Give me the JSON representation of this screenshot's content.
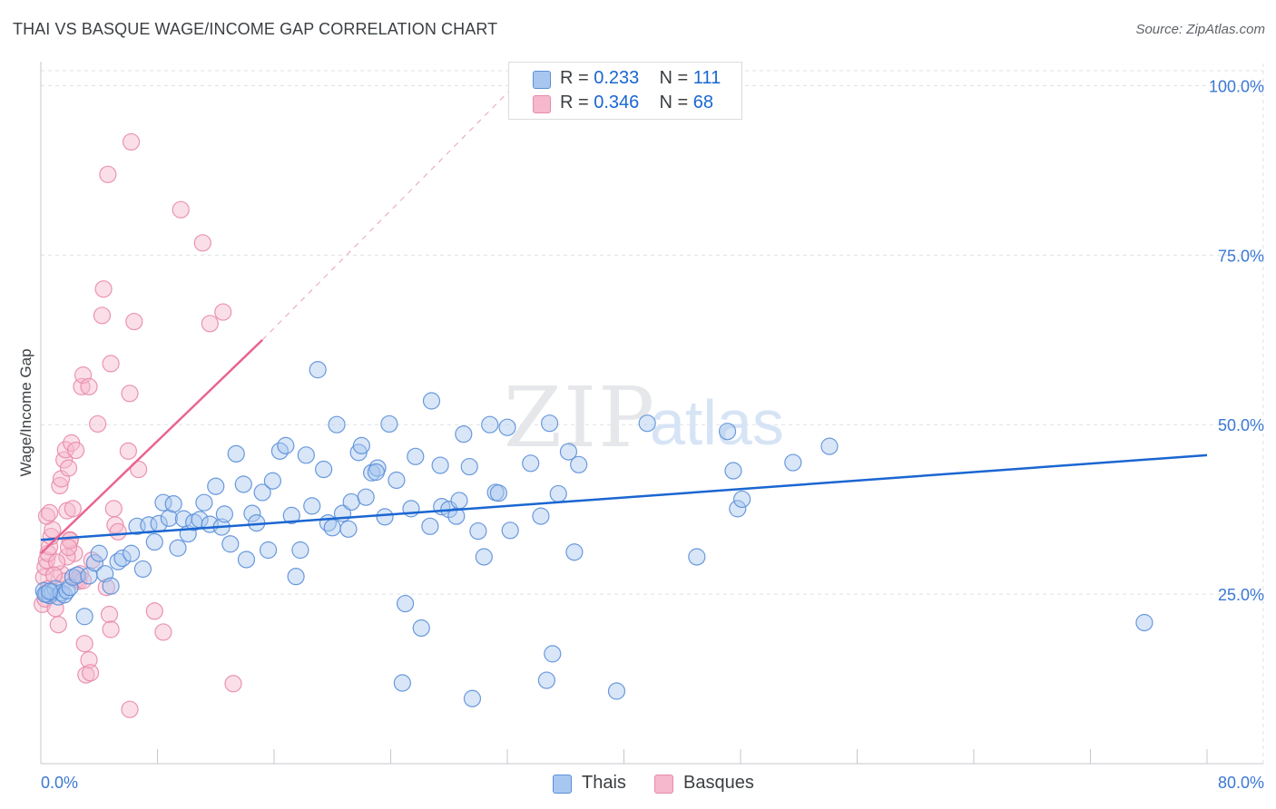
{
  "header": {
    "title": "THAI VS BASQUE WAGE/INCOME GAP CORRELATION CHART",
    "source": "Source: ZipAtlas.com"
  },
  "watermark": {
    "zip": "ZIP",
    "atlas": "atlas"
  },
  "colors": {
    "thais_fill": "#a8c7f0",
    "thais_stroke": "#5b8fd8",
    "thais_line": "#1a66d2",
    "basques_fill": "#f6b8cc",
    "basques_stroke": "#e88aa8",
    "basques_line": "#e8648e",
    "tick_label": "#3a78d4",
    "grid": "#dfe1e5"
  },
  "legend": {
    "thais": {
      "r_label": "R =",
      "r_value": "0.233",
      "n_label": "N =",
      "n_value": "111"
    },
    "basques": {
      "r_label": "R =",
      "r_value": "0.346",
      "n_label": "N =",
      "n_value": "68"
    }
  },
  "bottom_legend": {
    "thais": "Thais",
    "basques": "Basques"
  },
  "chart_data": {
    "type": "scatter",
    "title": "THAI VS BASQUE WAGE/INCOME GAP CORRELATION CHART",
    "xlabel": "",
    "ylabel": "Wage/Income Gap",
    "xlim": [
      0,
      80
    ],
    "ylim": [
      0,
      105
    ],
    "x_tick_labels": {
      "min": "0.0%",
      "max": "80.0%"
    },
    "y_ticks": [
      {
        "value": 25,
        "label": "25.0%"
      },
      {
        "value": 50,
        "label": "50.0%"
      },
      {
        "value": 75,
        "label": "75.0%"
      },
      {
        "value": 100,
        "label": "100.0%"
      }
    ],
    "grid": true,
    "series": [
      {
        "name": "Thais",
        "r": 0.233,
        "n": 111,
        "trend": {
          "x0": 0,
          "y0": 33.0,
          "x1": 80,
          "y1": 45.5,
          "style": "solid"
        },
        "points": [
          [
            0.2,
            25.5
          ],
          [
            0.4,
            25.0
          ],
          [
            0.6,
            24.8
          ],
          [
            0.8,
            25.3
          ],
          [
            1.0,
            25.8
          ],
          [
            1.2,
            24.6
          ],
          [
            1.4,
            25.2
          ],
          [
            1.6,
            24.9
          ],
          [
            1.8,
            25.5
          ],
          [
            2.0,
            26.0
          ],
          [
            2.2,
            27.5
          ],
          [
            2.5,
            27.8
          ],
          [
            3.0,
            21.7
          ],
          [
            3.3,
            27.7
          ],
          [
            3.7,
            29.6
          ],
          [
            4.0,
            31.0
          ],
          [
            4.4,
            28.0
          ],
          [
            4.8,
            26.2
          ],
          [
            5.3,
            29.8
          ],
          [
            5.6,
            30.3
          ],
          [
            6.2,
            31.0
          ],
          [
            6.6,
            35.0
          ],
          [
            7.0,
            28.7
          ],
          [
            7.4,
            35.2
          ],
          [
            7.8,
            32.7
          ],
          [
            8.1,
            35.4
          ],
          [
            8.4,
            38.5
          ],
          [
            8.8,
            36.2
          ],
          [
            9.1,
            38.3
          ],
          [
            9.4,
            31.8
          ],
          [
            9.8,
            36.1
          ],
          [
            10.1,
            33.9
          ],
          [
            10.5,
            35.6
          ],
          [
            10.9,
            36.0
          ],
          [
            11.2,
            38.5
          ],
          [
            11.6,
            35.3
          ],
          [
            12.0,
            40.9
          ],
          [
            12.4,
            34.9
          ],
          [
            12.6,
            36.8
          ],
          [
            13.0,
            32.4
          ],
          [
            13.4,
            45.7
          ],
          [
            13.9,
            41.2
          ],
          [
            14.1,
            30.1
          ],
          [
            14.5,
            36.9
          ],
          [
            14.8,
            35.5
          ],
          [
            15.2,
            40.0
          ],
          [
            15.6,
            31.5
          ],
          [
            15.9,
            41.7
          ],
          [
            16.4,
            46.1
          ],
          [
            16.8,
            46.9
          ],
          [
            17.2,
            36.6
          ],
          [
            17.5,
            27.6
          ],
          [
            17.8,
            31.5
          ],
          [
            18.2,
            45.5
          ],
          [
            18.6,
            38.0
          ],
          [
            19.0,
            58.1
          ],
          [
            19.4,
            43.4
          ],
          [
            19.7,
            35.5
          ],
          [
            20.0,
            34.8
          ],
          [
            20.3,
            50.0
          ],
          [
            20.7,
            36.9
          ],
          [
            21.1,
            34.6
          ],
          [
            21.3,
            38.6
          ],
          [
            21.8,
            45.9
          ],
          [
            22.0,
            46.9
          ],
          [
            22.3,
            39.3
          ],
          [
            22.7,
            42.9
          ],
          [
            23.1,
            43.6
          ],
          [
            23.0,
            43.0
          ],
          [
            23.6,
            36.4
          ],
          [
            23.9,
            50.1
          ],
          [
            24.4,
            41.8
          ],
          [
            25.0,
            23.6
          ],
          [
            24.8,
            11.9
          ],
          [
            25.4,
            37.6
          ],
          [
            25.7,
            45.3
          ],
          [
            26.1,
            20.0
          ],
          [
            26.8,
            53.5
          ],
          [
            26.7,
            35.0
          ],
          [
            27.5,
            37.9
          ],
          [
            27.4,
            44.0
          ],
          [
            28.0,
            37.5
          ],
          [
            28.5,
            36.5
          ],
          [
            28.7,
            38.8
          ],
          [
            29.0,
            48.6
          ],
          [
            29.4,
            43.8
          ],
          [
            29.6,
            9.6
          ],
          [
            30.0,
            34.3
          ],
          [
            30.4,
            30.5
          ],
          [
            30.8,
            50.0
          ],
          [
            31.2,
            40.0
          ],
          [
            31.4,
            39.9
          ],
          [
            32.0,
            49.6
          ],
          [
            32.2,
            34.4
          ],
          [
            33.6,
            44.3
          ],
          [
            34.3,
            36.5
          ],
          [
            34.7,
            12.3
          ],
          [
            34.9,
            50.2
          ],
          [
            35.1,
            16.2
          ],
          [
            35.5,
            39.8
          ],
          [
            36.2,
            46.0
          ],
          [
            36.6,
            31.2
          ],
          [
            36.9,
            44.1
          ],
          [
            39.5,
            10.7
          ],
          [
            41.6,
            50.2
          ],
          [
            45.0,
            30.5
          ],
          [
            47.1,
            49.0
          ],
          [
            47.5,
            43.2
          ],
          [
            47.8,
            37.6
          ],
          [
            48.1,
            39.0
          ],
          [
            51.6,
            44.4
          ],
          [
            54.1,
            46.8
          ],
          [
            75.7,
            20.8
          ],
          [
            0.3,
            25.0
          ],
          [
            0.6,
            25.4
          ]
        ]
      },
      {
        "name": "Basques",
        "r": 0.346,
        "n": 68,
        "trend": {
          "x0": 0,
          "y0": 31.0,
          "x1": 15.2,
          "y1": 62.5,
          "dash_to": {
            "x": 32.5,
            "y": 100.0
          },
          "style": "solid-then-dashed"
        },
        "points": [
          [
            0.1,
            23.5
          ],
          [
            0.2,
            27.5
          ],
          [
            0.3,
            29.0
          ],
          [
            0.4,
            30.0
          ],
          [
            0.5,
            31.0
          ],
          [
            0.6,
            32.0
          ],
          [
            0.7,
            33.5
          ],
          [
            0.8,
            34.5
          ],
          [
            0.4,
            36.5
          ],
          [
            0.6,
            37.0
          ],
          [
            0.3,
            24.3
          ],
          [
            0.5,
            25.8
          ],
          [
            1.2,
            20.5
          ],
          [
            1.0,
            22.9
          ],
          [
            1.4,
            28.0
          ],
          [
            1.6,
            26.9
          ],
          [
            1.3,
            41.0
          ],
          [
            1.4,
            42.0
          ],
          [
            1.6,
            44.8
          ],
          [
            1.7,
            46.3
          ],
          [
            1.8,
            37.3
          ],
          [
            1.9,
            43.6
          ],
          [
            2.1,
            47.3
          ],
          [
            2.4,
            46.2
          ],
          [
            2.2,
            37.6
          ],
          [
            2.3,
            31.0
          ],
          [
            2.6,
            26.9
          ],
          [
            2.7,
            28.0
          ],
          [
            2.0,
            33.0
          ],
          [
            1.8,
            30.5
          ],
          [
            2.0,
            32.9
          ],
          [
            2.8,
            55.6
          ],
          [
            2.9,
            57.3
          ],
          [
            3.3,
            55.6
          ],
          [
            3.0,
            17.7
          ],
          [
            3.1,
            13.1
          ],
          [
            3.3,
            15.3
          ],
          [
            3.4,
            13.4
          ],
          [
            3.9,
            50.1
          ],
          [
            4.3,
            70.0
          ],
          [
            4.2,
            66.1
          ],
          [
            4.6,
            86.9
          ],
          [
            4.8,
            59.0
          ],
          [
            4.5,
            26.0
          ],
          [
            4.7,
            22.0
          ],
          [
            4.8,
            19.8
          ],
          [
            5.0,
            37.6
          ],
          [
            5.1,
            35.2
          ],
          [
            5.3,
            34.2
          ],
          [
            6.1,
            54.6
          ],
          [
            6.0,
            46.1
          ],
          [
            6.2,
            91.7
          ],
          [
            6.4,
            65.2
          ],
          [
            6.7,
            43.4
          ],
          [
            6.1,
            8.0
          ],
          [
            7.8,
            22.5
          ],
          [
            8.4,
            19.4
          ],
          [
            9.6,
            81.7
          ],
          [
            11.1,
            76.8
          ],
          [
            11.6,
            64.9
          ],
          [
            12.5,
            66.6
          ],
          [
            13.2,
            11.8
          ],
          [
            2.5,
            27.2
          ],
          [
            1.9,
            31.9
          ],
          [
            1.1,
            29.7
          ],
          [
            0.9,
            27.8
          ],
          [
            3.5,
            30.0
          ],
          [
            2.9,
            27.0
          ]
        ]
      }
    ]
  }
}
